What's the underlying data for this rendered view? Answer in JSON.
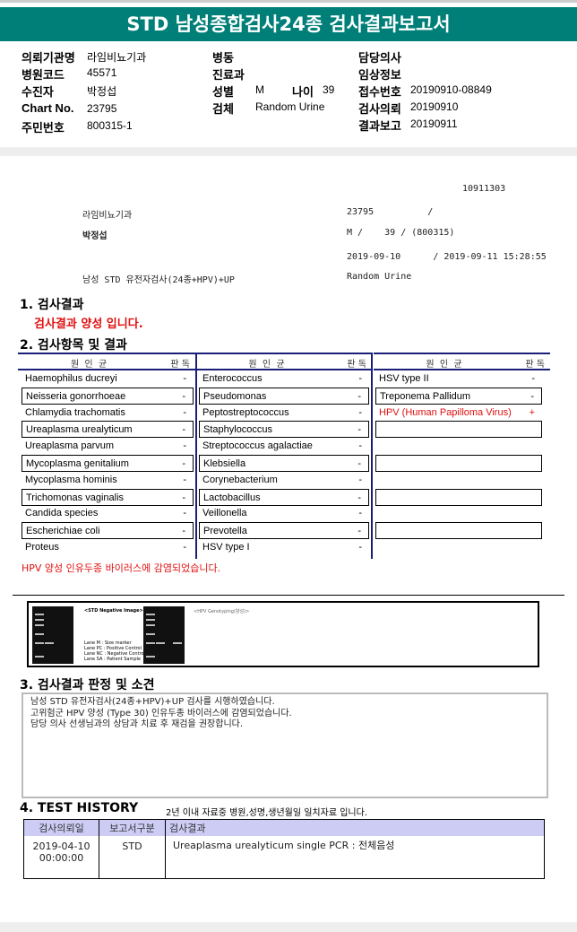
{
  "title": "STD 남성종합검사24종 검사결과보고서",
  "info": {
    "col1": [
      {
        "label": "의뢰기관명",
        "value": "라임비뇨기과"
      },
      {
        "label": "병원코드",
        "value": "45571"
      },
      {
        "label": "수진자",
        "value": "박정섭"
      },
      {
        "label": "Chart No.",
        "value": "23795"
      },
      {
        "label": "주민번호",
        "value": "800315-1"
      }
    ],
    "col2": [
      {
        "label": "병동",
        "value": ""
      },
      {
        "label": "진료과",
        "value": ""
      },
      {
        "label": "성별",
        "value": "M"
      },
      {
        "label": "검체",
        "value": "Random Urine"
      }
    ],
    "age_label": "나이",
    "age_value": "39",
    "col3": [
      {
        "label": "담당의사",
        "value": ""
      },
      {
        "label": "임상정보",
        "value": ""
      },
      {
        "label": "접수번호",
        "value": "20190910-08849"
      },
      {
        "label": "검사의뢰",
        "value": "20190910"
      },
      {
        "label": "결과보고",
        "value": "20190911"
      }
    ]
  },
  "stub": {
    "code": "10911303",
    "hospital": "라임비뇨기과",
    "chart": "23795          /",
    "name": "박정섭",
    "sexage": "M /    39 / (800315)",
    "dates": "2019-09-10      / 2019-09-11 15:28:55",
    "test": "남성 STD 유전자검사(24종+HPV)+UP",
    "specimen": "Random Urine"
  },
  "section1": {
    "title": "1. 검사결과",
    "result": "검사결과 양성 입니다."
  },
  "section2": {
    "title": "2. 검사항목 및 결과",
    "col_header": "원  인  균",
    "judge_header": "판 독",
    "columns": [
      [
        [
          "Haemophilus ducreyi",
          "-"
        ],
        [
          "Neisseria gonorrhoeae",
          "-"
        ],
        [
          "Chlamydia trachomatis",
          "-"
        ],
        [
          "Ureaplasma urealyticum",
          "-"
        ],
        [
          "Ureaplasma parvum",
          "-"
        ],
        [
          "Mycoplasma genitalium",
          "-"
        ],
        [
          "Mycoplasma hominis",
          "-"
        ],
        [
          "Trichomonas vaginalis",
          "-"
        ],
        [
          "Candida species",
          "-"
        ],
        [
          "Escherichiae coli",
          "-"
        ],
        [
          "Proteus",
          "-"
        ]
      ],
      [
        [
          "Enterococcus",
          "-"
        ],
        [
          "Pseudomonas",
          "-"
        ],
        [
          "Peptostreptococcus",
          "-"
        ],
        [
          "Staphylococcus",
          "-"
        ],
        [
          "Streptococcus agalactiae",
          "-"
        ],
        [
          "Klebsiella",
          "-"
        ],
        [
          "Corynebacterium",
          "-"
        ],
        [
          "Lactobacillus",
          "-"
        ],
        [
          "Veillonella",
          "-"
        ],
        [
          "Prevotella",
          "-"
        ],
        [
          "HSV type I",
          "-"
        ]
      ],
      [
        [
          "HSV type II",
          "-"
        ],
        [
          "Treponema Pallidum",
          "-"
        ],
        [
          "HPV (Human Papilloma Virus)",
          "+"
        ],
        [
          "",
          ""
        ],
        [
          "",
          ""
        ],
        [
          "",
          ""
        ],
        [
          "",
          ""
        ],
        [
          "",
          ""
        ],
        [
          "",
          ""
        ],
        [
          "",
          ""
        ],
        [
          "",
          ""
        ]
      ]
    ],
    "note": "HPV 양성 인유두종 바이러스에 감염되었습니다.",
    "positive_color": "#e01010"
  },
  "gel": {
    "caption1": "<STD Negative Image>",
    "caption2": "<HPV Genotyping(양성)>",
    "legend": [
      "Lane M : Size marker",
      "Lane PC : Positive Control",
      "Lane NC : Negative Control",
      "Lane SA : Patient Sample"
    ],
    "lanes": [
      "M",
      "PC",
      "NC",
      "SA"
    ]
  },
  "section3": {
    "title": "3. 검사결과 판정 및 소견",
    "lines": [
      "남성 STD 유전자검사(24종+HPV)+UP 검사를 시행하였습니다.",
      "고위험군 HPV 양성 (Type 30) 인유두종 바이러스에 감염되었습니다.",
      "담당 의사 선생님과의 상담과 치료 후 재검을 권장합니다."
    ]
  },
  "section4": {
    "title": "4. TEST HISTORY",
    "note": "2년 이내 자료중 병원,성명,생년월일 일치자료 입니다.",
    "headers": [
      "검사의뢰일",
      "보고서구분",
      "검사결과"
    ],
    "rows": [
      {
        "date": "2019-04-10",
        "time": "00:00:00",
        "type": "STD",
        "result": "Ureaplasma urealyticum single PCR : 전체음성"
      }
    ]
  }
}
